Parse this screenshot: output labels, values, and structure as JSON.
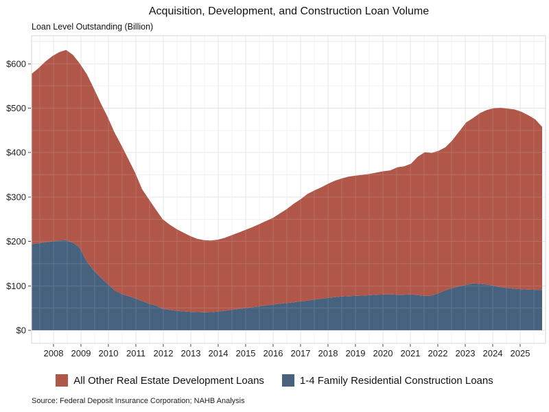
{
  "title": "Acquisition, Development, and Construction Loan Volume",
  "subtitle": "Loan Level Outstanding (Billion)",
  "source": "Source: Federal Deposit Insurance Corporation; NAHB Analysis",
  "colors": {
    "series_other": "#b0574a",
    "series_one_to_four": "#47627f",
    "grid_major": "#e2e2e2",
    "grid_minor": "#f0f0f0",
    "grid_overlay": "#ffffff",
    "panel_border": "#d6d6d6",
    "tick": "#4a4a4a",
    "axis_text": "#1f1f1f"
  },
  "legend": {
    "items": [
      {
        "label": "All Other Real Estate Development Loans",
        "color": "#b0574a"
      },
      {
        "label": "1-4 Family Residential Construction Loans",
        "color": "#47627f"
      }
    ]
  },
  "y_axis": {
    "tick_values": [
      0,
      100,
      200,
      300,
      400,
      500,
      600
    ],
    "tick_labels": [
      "$0",
      "$100",
      "$200",
      "$300",
      "$400",
      "$500",
      "$600"
    ]
  },
  "x_axis": {
    "tick_values": [
      2008,
      2009,
      2010,
      2011,
      2012,
      2013,
      2014,
      2015,
      2016,
      2017,
      2018,
      2019,
      2020,
      2021,
      2022,
      2023,
      2024,
      2025
    ],
    "tick_labels": [
      "2008",
      "2009",
      "2010",
      "2011",
      "2012",
      "2013",
      "2014",
      "2015",
      "2016",
      "2017",
      "2018",
      "2019",
      "2020",
      "2021",
      "2022",
      "2023",
      "2024",
      "2025"
    ]
  },
  "chart_data": {
    "type": "area",
    "stacked": true,
    "frequency": "quarterly",
    "x_first": "2007 Q1",
    "x_last": "2025 Q3",
    "units": "billions of dollars",
    "ylim": [
      0,
      663
    ],
    "grid": true,
    "legend_position": "bottom",
    "series": [
      {
        "name": "1-4 Family Residential Construction Loans",
        "color": "#47627f",
        "values": [
          194,
          196,
          198,
          200,
          202,
          203,
          197,
          185,
          155,
          135,
          119,
          105,
          90,
          82,
          77,
          72,
          66,
          60,
          56,
          48,
          46,
          44,
          42.5,
          41.5,
          41,
          40.5,
          41,
          42,
          44,
          46,
          48,
          50,
          52,
          54,
          56,
          58,
          60,
          61.5,
          63,
          65,
          67,
          69,
          71,
          73,
          74.5,
          76,
          77,
          77.5,
          78,
          79,
          80,
          80.5,
          81,
          80,
          80,
          81,
          79,
          77.5,
          78,
          84,
          90,
          95,
          99,
          102,
          105.5,
          104.5,
          103,
          100,
          97,
          95,
          93.5,
          92.5,
          91.5,
          91,
          91
        ]
      },
      {
        "name": "All Other Real Estate Development Loans",
        "color": "#b0574a",
        "values": [
          383,
          394,
          407,
          417,
          424,
          428,
          423,
          415,
          422,
          410,
          393,
          376,
          356,
          335,
          309,
          283,
          252,
          235,
          216,
          202,
          192,
          184,
          177.5,
          170.5,
          165,
          162.5,
          161,
          162,
          164,
          168,
          172,
          176,
          180,
          185,
          190,
          195,
          203,
          211.5,
          222,
          230,
          240,
          246,
          251,
          257,
          262.5,
          266,
          269,
          270.5,
          272,
          273,
          275,
          277.5,
          279,
          287,
          289,
          294,
          312,
          323.5,
          321,
          320,
          322,
          333,
          349,
          366,
          372.5,
          384.5,
          393,
          400,
          404,
          404,
          403.5,
          399.5,
          392.5,
          384,
          367
        ]
      }
    ]
  }
}
